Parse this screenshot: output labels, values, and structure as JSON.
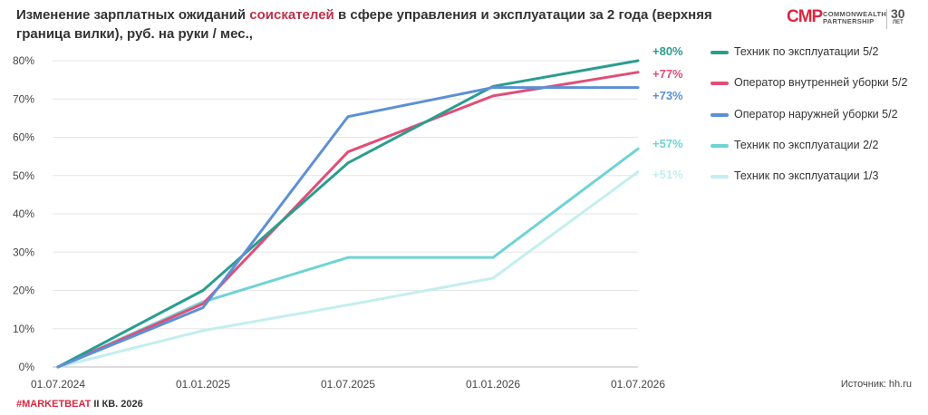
{
  "title": {
    "part1": "Изменение зарплатных ожиданий ",
    "highlight": "соискателей",
    "part2": " в сфере управления и эксплуатации за 2 года (верхняя граница вилки), руб. на руки / мес.,"
  },
  "logo": {
    "mark": "CMP",
    "name_line1": "COMMONWEALTH",
    "name_line2": "PARTNERSHIP",
    "years": "30",
    "years_sub": "ЛЕТ"
  },
  "source": "Источник: hh.ru",
  "footer": {
    "tag": "#MARKETBEAT",
    "period": " II КВ. 2026"
  },
  "chart_data": {
    "type": "line",
    "title": "Изменение зарплатных ожиданий соискателей в сфере управления и эксплуатации за 2 года (верхняя граница вилки), руб. на руки / мес.,",
    "xlabel": "",
    "ylabel": "",
    "x": [
      "01.07.2024",
      "01.01.2025",
      "01.07.2025",
      "01.01.2026",
      "01.07.2026"
    ],
    "ylim": [
      0,
      80
    ],
    "yticks": [
      0,
      10,
      20,
      30,
      40,
      50,
      60,
      70,
      80
    ],
    "ytick_labels": [
      "0%",
      "10%",
      "20%",
      "30%",
      "40%",
      "50%",
      "60%",
      "70%",
      "80%"
    ],
    "grid": "horizontal",
    "legend_position": "right",
    "series": [
      {
        "name": "Техник по эксплуатации 5/2",
        "color": "#2a9d8f",
        "values": [
          0,
          20,
          53.3,
          73.3,
          80
        ],
        "end_label": "+80%"
      },
      {
        "name": "Оператор внутренней уборки 5/2",
        "color": "#e04e77",
        "values": [
          0,
          16.5,
          56.2,
          70.8,
          77
        ],
        "end_label": "+77%"
      },
      {
        "name": "Оператор наружней уборки 5/2",
        "color": "#5d8fd6",
        "values": [
          0,
          15.5,
          65.4,
          73,
          73
        ],
        "end_label": "+73%"
      },
      {
        "name": "Техник по эксплуатации 2/2",
        "color": "#6fd3d3",
        "values": [
          0,
          17,
          28.6,
          28.6,
          57
        ],
        "end_label": "+57%"
      },
      {
        "name": "Техник по эксплуатации 1/3",
        "color": "#c4eeee",
        "values": [
          0,
          9.5,
          16.2,
          23.2,
          51
        ],
        "end_label": "+51%"
      }
    ]
  }
}
